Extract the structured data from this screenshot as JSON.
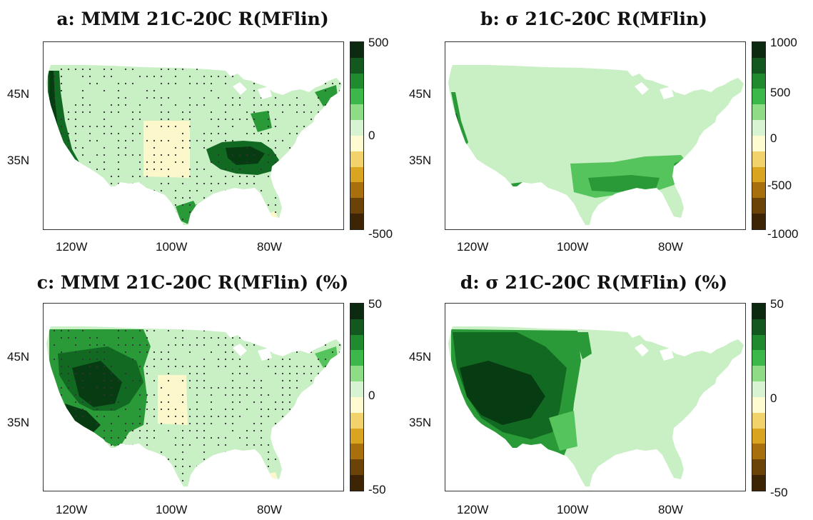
{
  "panels": [
    {
      "id": "a",
      "title": "a: MMM 21C-20C R(MFlin)",
      "colorbar_labels": [
        "500",
        "0",
        "-500"
      ],
      "stippled": true,
      "pattern": "a"
    },
    {
      "id": "b",
      "title": "b: σ 21C-20C R(MFlin)",
      "colorbar_labels": [
        "1000",
        "500",
        "0",
        "-500",
        "-1000"
      ],
      "stippled": false,
      "pattern": "b"
    },
    {
      "id": "c",
      "title": "c: MMM 21C-20C R(MFlin) (%)",
      "colorbar_labels": [
        "50",
        "0",
        "-50"
      ],
      "stippled": true,
      "pattern": "c"
    },
    {
      "id": "d",
      "title": "d: σ 21C-20C R(MFlin) (%)",
      "colorbar_labels": [
        "50",
        "0",
        "-50"
      ],
      "stippled": false,
      "pattern": "d"
    }
  ],
  "lat_labels": [
    "45N",
    "35N"
  ],
  "lon_labels": [
    "120W",
    "100W",
    "80W"
  ],
  "colors": {
    "colorbar": [
      "#0b2a10",
      "#13581f",
      "#1f8a2e",
      "#3cb84a",
      "#8fdc86",
      "#d8f3d2",
      "#fffbd1",
      "#f2d36b",
      "#d9a520",
      "#a8700c",
      "#6b4308",
      "#3d2404"
    ],
    "light_green": "#c9efc5",
    "pale_yellow": "#fdf7cc",
    "mid_green": "#56c45c",
    "green": "#2a9a38",
    "dark_green": "#126a22",
    "very_dark_green": "#073b12"
  }
}
